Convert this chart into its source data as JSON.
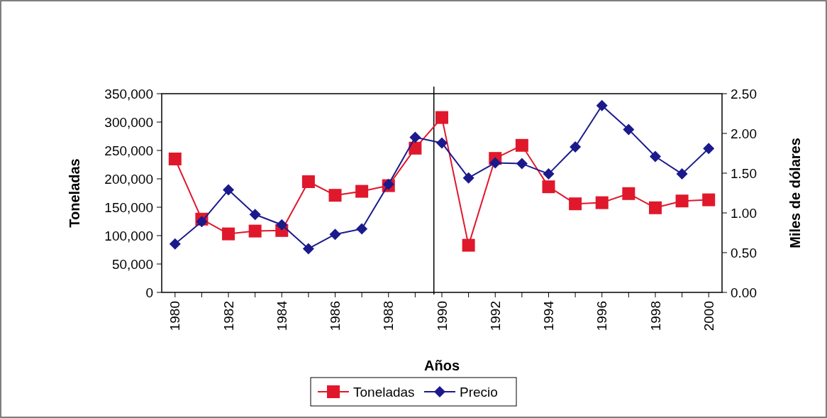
{
  "chart_data": {
    "type": "line",
    "xlabel": "Años",
    "ylabel": "Toneladas",
    "y2label": "Miles de dólares",
    "x": [
      1980,
      1981,
      1982,
      1983,
      1984,
      1985,
      1986,
      1987,
      1988,
      1989,
      1990,
      1991,
      1992,
      1993,
      1994,
      1995,
      1996,
      1997,
      1998,
      1999,
      2000
    ],
    "series": [
      {
        "name": "Toneladas",
        "color": "#e0182c",
        "marker": "square",
        "values": [
          235000,
          129000,
          103000,
          108000,
          109000,
          195000,
          171000,
          178000,
          188000,
          254000,
          308000,
          83000,
          236000,
          259000,
          186000,
          156000,
          158000,
          174000,
          149000,
          161000,
          163000
        ]
      },
      {
        "name": "Precio",
        "color": "#1a1a8c",
        "marker": "diamond",
        "axis": "y2",
        "values": [
          0.61,
          0.89,
          1.29,
          0.98,
          0.85,
          0.55,
          0.73,
          0.8,
          1.36,
          1.95,
          1.88,
          1.44,
          1.63,
          1.62,
          1.49,
          1.83,
          2.35,
          2.05,
          1.71,
          1.49,
          1.81
        ]
      }
    ],
    "xlim": [
      1979.5,
      2000.5
    ],
    "xticks": [
      {
        "value": 1980,
        "label": "1980"
      },
      {
        "value": 1981,
        "label": null
      },
      {
        "value": 1982,
        "label": "1982"
      },
      {
        "value": 1983,
        "label": null
      },
      {
        "value": 1984,
        "label": "1984"
      },
      {
        "value": 1985,
        "label": null
      },
      {
        "value": 1986,
        "label": "1986"
      },
      {
        "value": 1987,
        "label": null
      },
      {
        "value": 1988,
        "label": "1988"
      },
      {
        "value": 1989,
        "label": null
      },
      {
        "value": 1990,
        "label": "1990"
      },
      {
        "value": 1991,
        "label": null
      },
      {
        "value": 1992,
        "label": "1992"
      },
      {
        "value": 1993,
        "label": null
      },
      {
        "value": 1994,
        "label": "1994"
      },
      {
        "value": 1995,
        "label": null
      },
      {
        "value": 1996,
        "label": "1996"
      },
      {
        "value": 1997,
        "label": null
      },
      {
        "value": 1998,
        "label": "1998"
      },
      {
        "value": 1999,
        "label": null
      },
      {
        "value": 2000,
        "label": "2000"
      }
    ],
    "ylim": [
      0,
      350000
    ],
    "yticks": [
      {
        "value": 0,
        "label": "0"
      },
      {
        "value": 50000,
        "label": "50,000"
      },
      {
        "value": 100000,
        "label": "100,000"
      },
      {
        "value": 150000,
        "label": "150,000"
      },
      {
        "value": 200000,
        "label": "200,000"
      },
      {
        "value": 250000,
        "label": "250,000"
      },
      {
        "value": 300000,
        "label": "300,000"
      },
      {
        "value": 350000,
        "label": "350,000"
      }
    ],
    "y2lim": [
      0,
      2.5
    ],
    "y2ticks": [
      {
        "value": 0,
        "label": "0.00"
      },
      {
        "value": 0.5,
        "label": "0.50"
      },
      {
        "value": 1,
        "label": "1.00"
      },
      {
        "value": 1.5,
        "label": "1.50"
      },
      {
        "value": 2,
        "label": "2.00"
      },
      {
        "value": 2.5,
        "label": "2.50"
      }
    ],
    "ref_lines": [
      {
        "axis": "x",
        "value": 1989.7,
        "color": "#000000"
      }
    ],
    "grid": false,
    "legend": "bottom",
    "line_style": "solid"
  }
}
